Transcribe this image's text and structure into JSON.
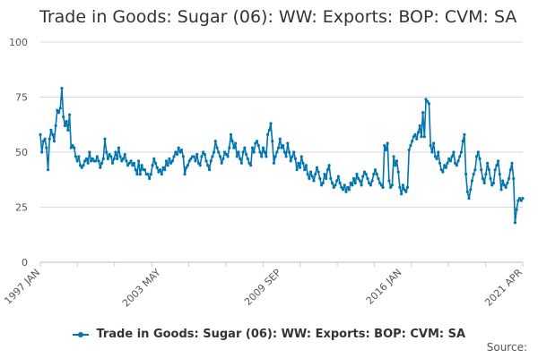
{
  "chart_title": "Trade in Goods: Sugar (06): WW: Exports: BOP: CVM: SA",
  "legend_label": "Trade in Goods: Sugar (06): WW: Exports: BOP: CVM: SA",
  "source_label": "Source:",
  "colors": {
    "series": "#0075b0",
    "grid": "#d9d9d9",
    "axis_text": "#555555"
  },
  "chart_data": {
    "type": "line",
    "title": "Trade in Goods: Sugar (06): WW: Exports: BOP: CVM: SA",
    "xlabel": "",
    "ylabel": "",
    "x_start": "1997 JAN",
    "x_end": "2021 APR",
    "x_tick_labels": [
      "1997 JAN",
      "2003 MAY",
      "2009 SEP",
      "2016 JAN",
      "2021 APR"
    ],
    "y_ticks": [
      0,
      25,
      50,
      75,
      100
    ],
    "ylim": [
      0,
      100
    ],
    "grid": true,
    "legend_position": "bottom",
    "series": [
      {
        "name": "Trade in Goods: Sugar (06): WW: Exports: BOP: CVM: SA",
        "values": [
          58,
          50,
          55,
          56,
          52,
          42,
          56,
          60,
          58,
          55,
          62,
          69,
          68,
          70,
          79,
          66,
          62,
          64,
          60,
          67,
          52,
          53,
          52,
          48,
          46,
          48,
          44,
          43,
          44,
          46,
          47,
          45,
          50,
          46,
          47,
          46,
          46,
          48,
          46,
          43,
          45,
          47,
          56,
          50,
          47,
          49,
          48,
          45,
          47,
          50,
          47,
          52,
          48,
          46,
          47,
          49,
          46,
          44,
          45,
          46,
          44,
          45,
          42,
          40,
          46,
          40,
          44,
          42,
          42,
          40,
          40,
          38,
          40,
          44,
          47,
          45,
          43,
          41,
          42,
          40,
          43,
          42,
          46,
          44,
          47,
          45,
          46,
          48,
          50,
          49,
          52,
          50,
          51,
          48,
          40,
          43,
          44,
          46,
          47,
          48,
          48,
          46,
          49,
          45,
          44,
          48,
          50,
          49,
          46,
          44,
          42,
          46,
          48,
          50,
          55,
          52,
          50,
          48,
          45,
          47,
          50,
          49,
          48,
          52,
          58,
          55,
          52,
          54,
          48,
          50,
          47,
          45,
          50,
          52,
          49,
          47,
          45,
          44,
          52,
          50,
          54,
          55,
          53,
          50,
          48,
          52,
          50,
          48,
          58,
          60,
          63,
          55,
          45,
          48,
          50,
          52,
          56,
          52,
          53,
          50,
          48,
          54,
          50,
          46,
          48,
          50,
          47,
          42,
          45,
          43,
          48,
          45,
          42,
          44,
          40,
          38,
          41,
          39,
          37,
          40,
          43,
          41,
          38,
          35,
          36,
          40,
          38,
          42,
          44,
          38,
          36,
          34,
          35,
          37,
          39,
          36,
          34,
          33,
          35,
          32,
          34,
          33,
          36,
          35,
          38,
          36,
          40,
          38,
          37,
          35,
          39,
          41,
          40,
          38,
          36,
          35,
          37,
          40,
          42,
          40,
          38,
          36,
          35,
          34,
          53,
          51,
          54,
          37,
          34,
          35,
          48,
          44,
          46,
          41,
          34,
          31,
          35,
          33,
          32,
          34,
          51,
          53,
          55,
          57,
          58,
          56,
          59,
          62,
          57,
          68,
          57,
          74,
          73,
          72,
          53,
          50,
          54,
          48,
          47,
          50,
          45,
          42,
          41,
          44,
          43,
          45,
          47,
          46,
          48,
          50,
          45,
          44,
          46,
          48,
          50,
          55,
          58,
          40,
          32,
          29,
          33,
          37,
          40,
          42,
          48,
          50,
          47,
          42,
          38,
          36,
          40,
          45,
          42,
          38,
          35,
          36,
          42,
          44,
          46,
          40,
          33,
          37,
          35,
          34,
          36,
          38,
          42,
          45,
          38,
          18,
          24,
          28,
          29,
          28,
          29
        ]
      }
    ]
  }
}
